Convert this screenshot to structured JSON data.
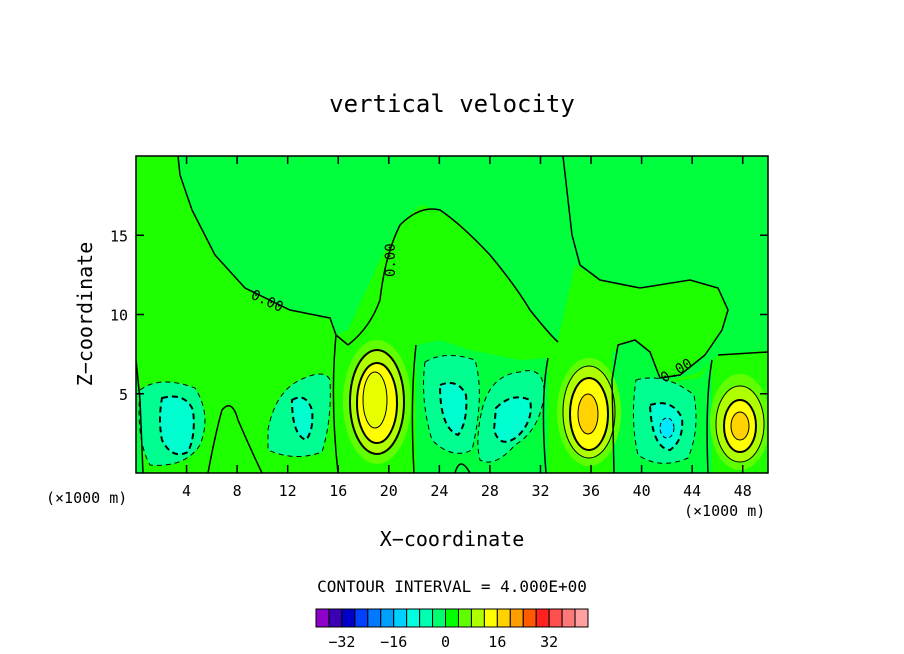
{
  "chart_data": {
    "type": "heatmap",
    "title": "vertical velocity",
    "xlabel": "X−coordinate",
    "ylabel": "Z−coordinate",
    "x_unit_left": "(×1000 m)",
    "x_unit_right": "(×1000 m)",
    "xlim": [
      0,
      50
    ],
    "ylim": [
      0,
      20
    ],
    "x_ticks": [
      4,
      8,
      12,
      16,
      20,
      24,
      28,
      32,
      36,
      40,
      44,
      48
    ],
    "y_ticks": [
      5,
      10,
      15
    ],
    "grid": false,
    "contour_labels": [
      "0.00",
      "0.00",
      "0.00"
    ],
    "contour_interval_text": "CONTOUR INTERVAL = 4.000E+00",
    "contour_interval": 4,
    "colorbar": {
      "tick_labels": [
        "−32",
        "−16",
        "0",
        "16",
        "32"
      ],
      "tick_values": [
        -32,
        -16,
        0,
        16,
        32
      ],
      "colors": [
        "#8c00c8",
        "#3c00b4",
        "#0000c8",
        "#0040ff",
        "#0078ff",
        "#00a0ff",
        "#00d0ff",
        "#00ffe0",
        "#00ffb0",
        "#00ff70",
        "#00ff00",
        "#60ff00",
        "#b0ff00",
        "#ffff00",
        "#ffd200",
        "#ff9e00",
        "#ff5a00",
        "#ff2020",
        "#ff5050",
        "#ff7878",
        "#ffa0a0"
      ]
    },
    "cells": [
      {
        "x": 18.5,
        "z": 4.8,
        "value": 16
      },
      {
        "x": 35.2,
        "z": 3.8,
        "value": 14
      },
      {
        "x": 48.0,
        "z": 3.0,
        "value": 12
      },
      {
        "x": 3.5,
        "z": 2.8,
        "value": -8
      },
      {
        "x": 13.2,
        "z": 3.2,
        "value": -6
      },
      {
        "x": 25.0,
        "z": 4.0,
        "value": -8
      },
      {
        "x": 29.5,
        "z": 3.5,
        "value": -8
      },
      {
        "x": 42.0,
        "z": 2.8,
        "value": -10
      }
    ]
  }
}
